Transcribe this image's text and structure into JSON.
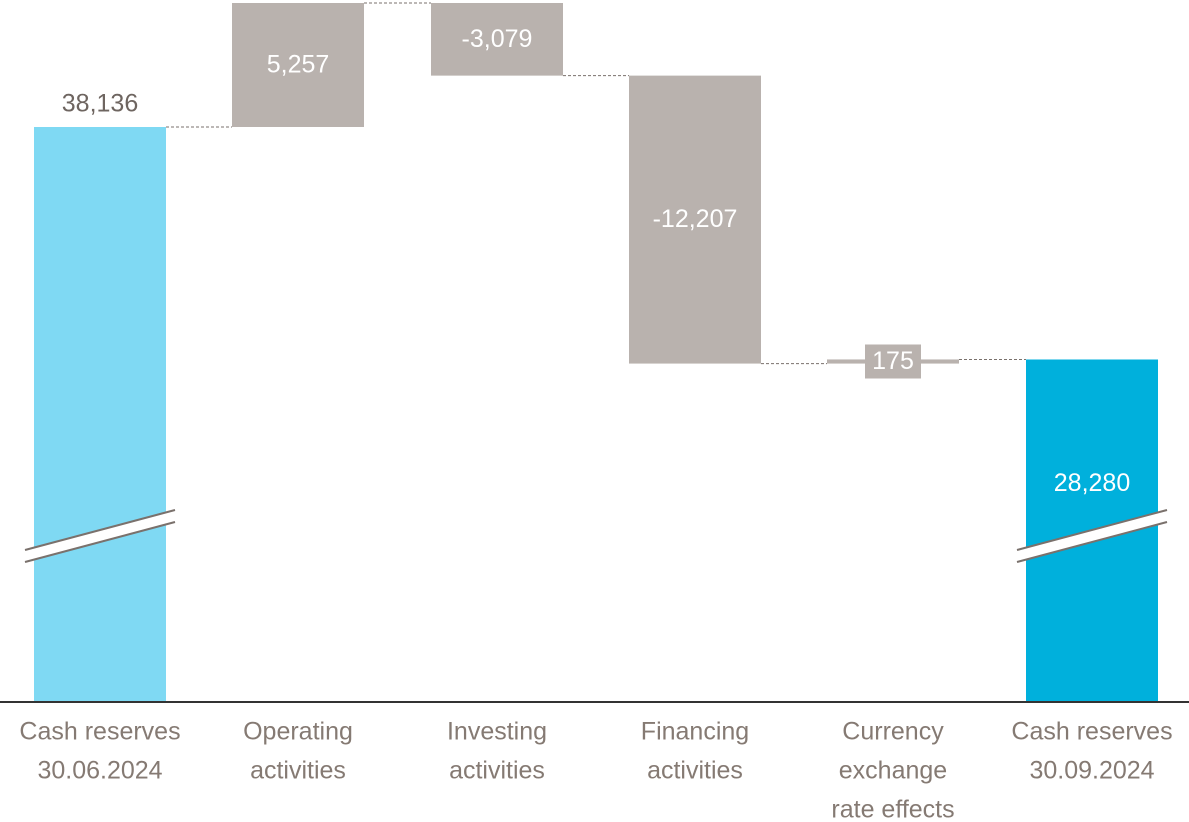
{
  "chart_data": {
    "type": "waterfall",
    "categories": [
      [
        "Cash reserves",
        "30.06.2024"
      ],
      [
        "Operating",
        "activities"
      ],
      [
        "Investing",
        "activities"
      ],
      [
        "Financing",
        "activities"
      ],
      [
        "Currency",
        "exchange",
        "rate effects"
      ],
      [
        "Cash reserves",
        "30.09.2024"
      ]
    ],
    "values": [
      38136,
      5257,
      -3079,
      -12207,
      175,
      28280
    ],
    "value_labels": [
      "38,136",
      "5,257",
      "-3,079",
      "-12,207",
      "175",
      "28,280"
    ],
    "colors": [
      "#7fd9f3",
      "#b9b2ae",
      "#b9b2ae",
      "#b9b2ae",
      "#b9b2ae",
      "#00b0dc"
    ],
    "ylim": [
      13760,
      43520
    ],
    "axis_break": true
  }
}
